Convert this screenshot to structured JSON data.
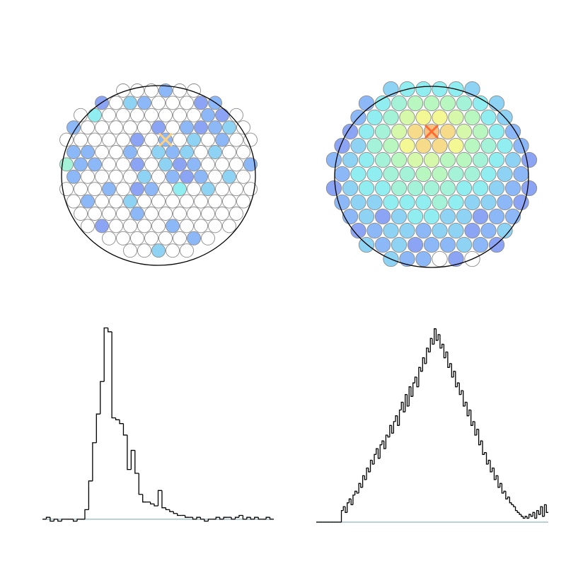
{
  "chart_data": [
    {
      "type": "hexmap",
      "colormap": [
        "#8c8ff0",
        "#8cb8f8",
        "#90eef0",
        "#b8f8c0",
        "#f4f894",
        "#f8c080"
      ],
      "empty_color": "#ffffff",
      "marker": {
        "row": 4,
        "col": 7,
        "color": "#ffd080"
      },
      "rows": [
        [
          null,
          null,
          null,
          0.2,
          null,
          null
        ],
        [
          0.1,
          null,
          0.3,
          0.2,
          null,
          null,
          null,
          0.1,
          0.2
        ],
        [
          null,
          0.4,
          null,
          null,
          null,
          null,
          null,
          null,
          null,
          0.2,
          0.1,
          null
        ],
        [
          0.2,
          null,
          null,
          null,
          null,
          null,
          0.1,
          null,
          0.2,
          0.1,
          0.2,
          0.3,
          null
        ],
        [
          null,
          null,
          null,
          null,
          null,
          0.1,
          null,
          0.2,
          null,
          0.3,
          null,
          0.2,
          null,
          null
        ],
        [
          0.2,
          0.2,
          null,
          null,
          0.2,
          null,
          0.3,
          0.2,
          0.3,
          null,
          0.3,
          null,
          null
        ],
        [
          0.5,
          0.2,
          0.2,
          null,
          null,
          0.1,
          null,
          0.3,
          0.1,
          0.2,
          null,
          null,
          null,
          0.2
        ],
        [
          0.2,
          null,
          null,
          null,
          null,
          0.3,
          null,
          0.2,
          0.1,
          0.2,
          null,
          0.3,
          null
        ],
        [
          null,
          null,
          null,
          0.2,
          null,
          0.1,
          0.2,
          null,
          0.4,
          null,
          0.3,
          null,
          null,
          null
        ],
        [
          null,
          0.2,
          null,
          null,
          0.3,
          null,
          null,
          null,
          null,
          null,
          null,
          null,
          null
        ],
        [
          null,
          null,
          null,
          null,
          0.2,
          null,
          null,
          null,
          null,
          null,
          null,
          null
        ],
        [
          null,
          0.1,
          null,
          null,
          null,
          null,
          0.2,
          null,
          null,
          null,
          null
        ],
        [
          null,
          null,
          null,
          null,
          null,
          null,
          0.2,
          null
        ],
        [
          null,
          null,
          0.3,
          null,
          null
        ]
      ]
    },
    {
      "type": "hexmap",
      "colormap": [
        "#8c8ff0",
        "#8cb8f8",
        "#90eef0",
        "#b8f8c0",
        "#f4f894",
        "#f8c080"
      ],
      "empty_color": "#ffffff",
      "marker": {
        "row": 3,
        "col": 5,
        "color": "#ff6a30"
      },
      "rows": [
        [
          0.3,
          0.4,
          0.4,
          0.4,
          0.4,
          0.3
        ],
        [
          0.2,
          0.4,
          0.5,
          0.6,
          0.6,
          0.6,
          0.5,
          0.4,
          0.3
        ],
        [
          0.2,
          0.4,
          0.5,
          0.7,
          0.8,
          0.8,
          0.7,
          0.6,
          0.4,
          0.3
        ],
        [
          0.1,
          0.4,
          0.5,
          0.7,
          0.9,
          1,
          0.9,
          0.7,
          0.6,
          0.4,
          0.2
        ],
        [
          0.1,
          0.3,
          0.5,
          0.6,
          0.8,
          0.9,
          0.9,
          0.8,
          0.6,
          0.5,
          0.4,
          0.2
        ],
        [
          0.2,
          0.3,
          0.4,
          0.5,
          0.6,
          0.7,
          0.7,
          0.6,
          0.6,
          0.5,
          0.4,
          0.3,
          0.1
        ],
        [
          0.2,
          0.4,
          0.4,
          0.5,
          0.5,
          0.6,
          0.6,
          0.5,
          0.5,
          0.4,
          0.3,
          0.2
        ],
        [
          0.1,
          0.3,
          0.4,
          0.4,
          0.5,
          0.5,
          0.5,
          0.5,
          0.4,
          0.4,
          0.3,
          0.2,
          0.1
        ],
        [
          0.2,
          0.3,
          0.3,
          0.4,
          0.4,
          0.4,
          0.5,
          0.4,
          0.3,
          0.3,
          0.2,
          0.1
        ],
        [
          0.2,
          0.3,
          0.1,
          0.3,
          0.4,
          0.4,
          0.3,
          0.3,
          0.1,
          0.2,
          0.2
        ],
        [
          0.1,
          0.2,
          0.3,
          0.3,
          0.2,
          0.3,
          0.3,
          0.1,
          0.2,
          0.3
        ],
        [
          0.3,
          0.2,
          0.3,
          0.1,
          0.2,
          0.2,
          0.3,
          0.2,
          0.1
        ],
        [
          0.3,
          0.2,
          0.2,
          null,
          0.1,
          null
        ]
      ]
    },
    {
      "type": "step",
      "color": "#000000",
      "baseline_color": "#8fb8c0",
      "ylim": [
        -3,
        105
      ],
      "values": [
        0,
        1,
        -1,
        0,
        -1,
        0,
        0,
        0,
        -1,
        0,
        0,
        5,
        20,
        40,
        55,
        72,
        100,
        98,
        53,
        52,
        50,
        44,
        26,
        36,
        24,
        13,
        9,
        9,
        8,
        7,
        15,
        6,
        5,
        4,
        3,
        2,
        2,
        1,
        1,
        0,
        1,
        0,
        -1,
        0,
        0,
        1,
        0,
        1,
        1,
        0,
        1,
        2,
        0,
        1,
        0,
        1,
        0,
        0,
        1,
        0
      ]
    },
    {
      "type": "step",
      "color": "#000000",
      "baseline_color": "#8fb8c0",
      "ylim": [
        0,
        105
      ],
      "values": [
        0,
        0,
        0,
        0,
        0,
        0,
        0,
        0,
        0,
        0,
        0,
        0,
        0,
        6,
        8,
        5,
        10,
        12,
        9,
        14,
        16,
        15,
        20,
        18,
        24,
        22,
        28,
        26,
        32,
        30,
        35,
        38,
        33,
        40,
        42,
        38,
        45,
        44,
        50,
        46,
        52,
        55,
        50,
        58,
        62,
        57,
        66,
        60,
        70,
        65,
        72,
        75,
        70,
        80,
        78,
        85,
        82,
        90,
        88,
        95,
        92,
        100,
        94,
        97,
        90,
        92,
        85,
        88,
        80,
        82,
        75,
        78,
        70,
        72,
        66,
        68,
        60,
        62,
        55,
        58,
        50,
        52,
        45,
        48,
        40,
        42,
        35,
        36,
        30,
        32,
        26,
        28,
        22,
        24,
        18,
        20,
        15,
        16,
        12,
        13,
        10,
        9,
        8,
        6,
        5,
        4,
        3,
        2,
        3,
        2,
        4,
        3,
        5,
        2,
        6,
        4,
        8,
        3,
        9,
        5
      ]
    }
  ]
}
